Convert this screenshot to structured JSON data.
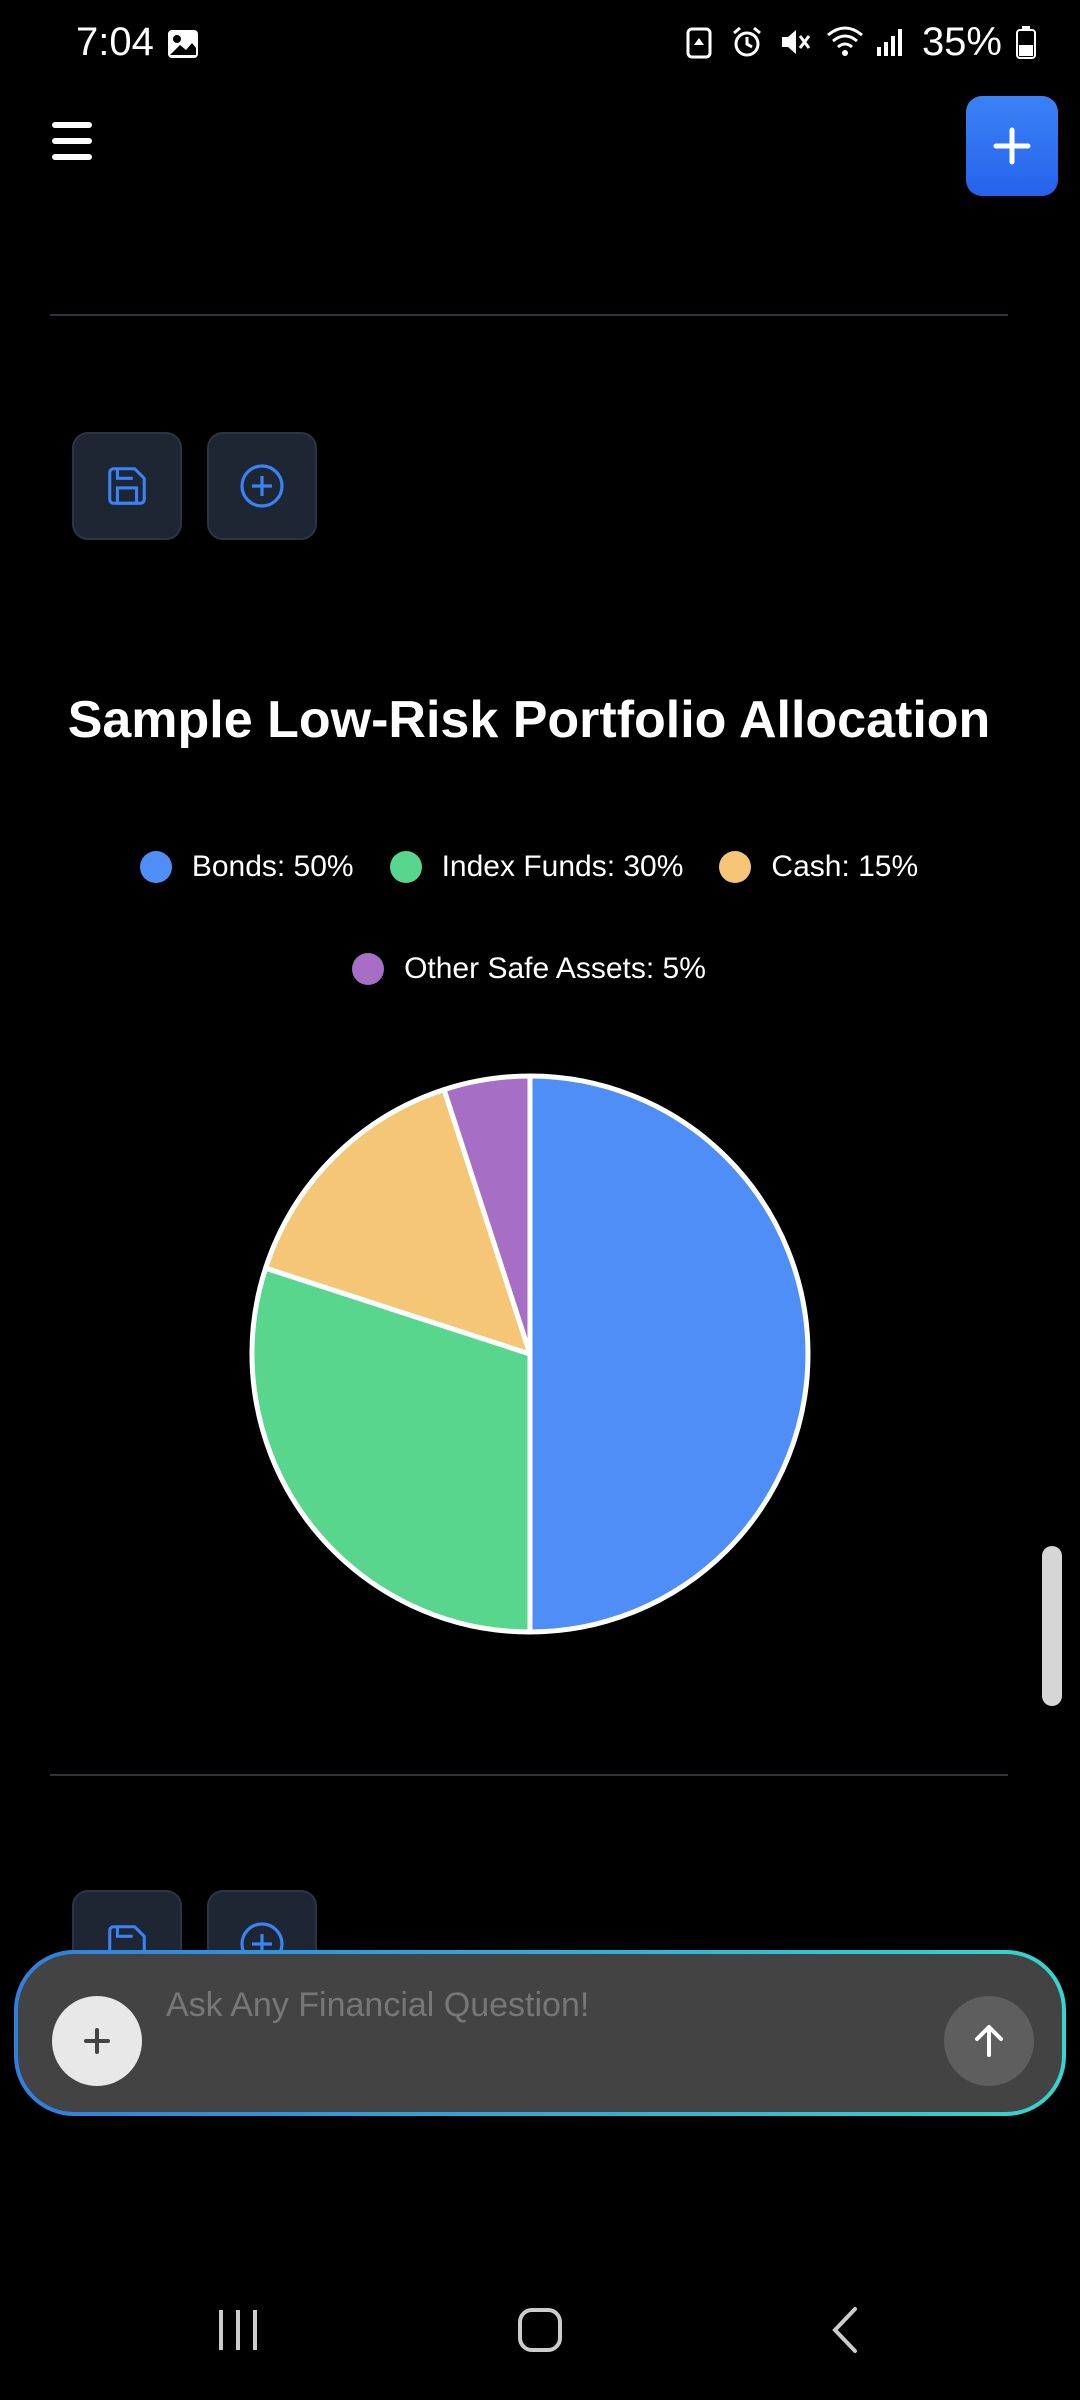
{
  "status_bar": {
    "time": "7:04",
    "battery": "35%",
    "icons": [
      "image-icon",
      "recycle-icon",
      "alarm-icon",
      "mute-icon",
      "wifi-icon",
      "signal-icon",
      "battery-icon"
    ]
  },
  "header": {
    "menu_icon": "hamburger-icon",
    "add_icon": "plus-icon",
    "accent_color": "#2f7cf6"
  },
  "toolbar": {
    "save_icon": "save-icon",
    "add_icon": "plus-circle-icon",
    "icon_color": "#3b82f6"
  },
  "chart_data": {
    "type": "pie",
    "title": "Sample Low-Risk Portfolio Allocation",
    "legend_position": "top",
    "slices": [
      {
        "label": "Bonds: 50%",
        "value": 50,
        "color": "#4f8ef7"
      },
      {
        "label": "Index Funds: 30%",
        "value": 30,
        "color": "#58d68d"
      },
      {
        "label": "Cash: 15%",
        "value": 15,
        "color": "#f5c675"
      },
      {
        "label": "Other Safe Assets: 5%",
        "value": 5,
        "color": "#a66fc5"
      }
    ]
  },
  "chat": {
    "placeholder": "Ask Any Financial Question!",
    "plus_icon": "plus-icon",
    "send_icon": "arrow-up-icon"
  },
  "nav_bar": {
    "icons": [
      "recent-apps-icon",
      "home-icon",
      "back-icon"
    ]
  }
}
